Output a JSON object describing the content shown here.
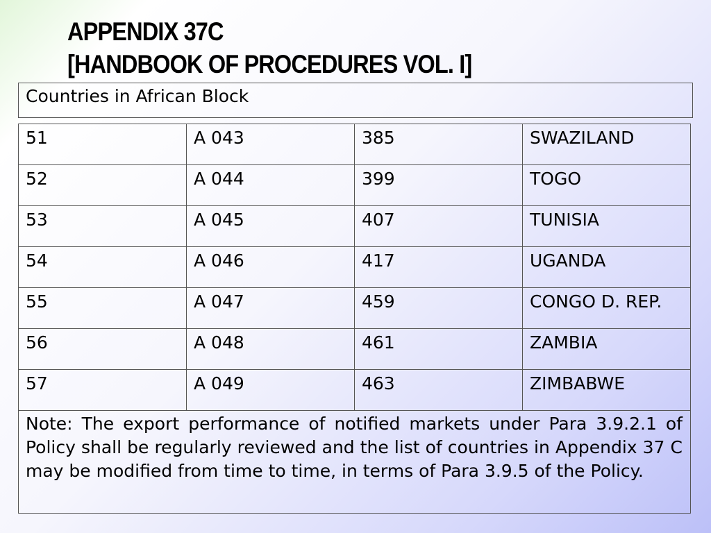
{
  "title": {
    "line1": "APPENDIX 37C",
    "line2": "[HANDBOOK OF PROCEDURES VOL. I]"
  },
  "header": "Countries in African Block",
  "rows": [
    {
      "sno": "51",
      "code": "A 043",
      "num": "385",
      "country": "SWAZILAND"
    },
    {
      "sno": "52",
      "code": "A 044",
      "num": "399",
      "country": "TOGO"
    },
    {
      "sno": "53",
      "code": "A 045",
      "num": "407",
      "country": "TUNISIA"
    },
    {
      "sno": "54",
      "code": "A 046",
      "num": "417",
      "country": "UGANDA"
    },
    {
      "sno": "55",
      "code": "A 047",
      "num": "459",
      "country": "CONGO D. REP."
    },
    {
      "sno": "56",
      "code": "A 048",
      "num": "461",
      "country": "ZAMBIA"
    },
    {
      "sno": "57",
      "code": "A 049",
      "num": "463",
      "country": "ZIMBABWE"
    }
  ],
  "note": "Note: The export performance of notified markets under Para 3.9.2.1 of Policy shall be regularly reviewed and the list of countries in Appendix 37 C may be modified from time to time, in terms of Para 3.9.5 of the Policy."
}
